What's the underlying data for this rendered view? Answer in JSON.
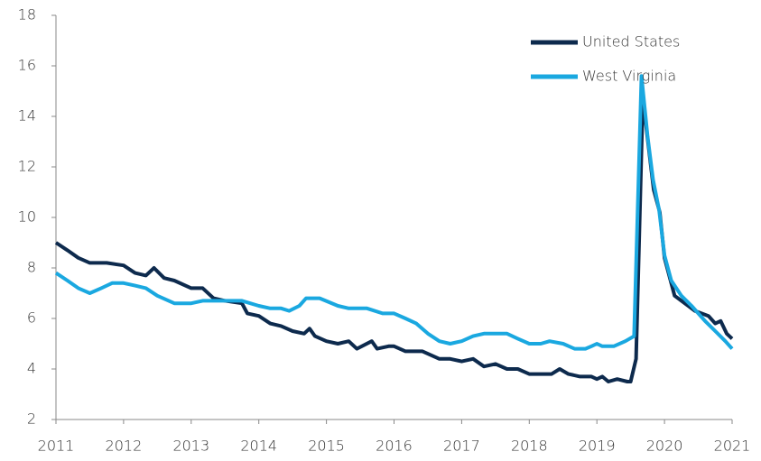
{
  "chart_data": {
    "type": "line",
    "xlim": [
      2011,
      2021
    ],
    "xticks": [
      2011,
      2012,
      2013,
      2014,
      2015,
      2016,
      2017,
      2018,
      2019,
      2020,
      2021
    ],
    "ylim": [
      2,
      18
    ],
    "yticks": [
      2,
      4,
      6,
      8,
      10,
      12,
      14,
      16,
      18
    ],
    "legend": "upper right",
    "grid": false,
    "series": [
      {
        "name": "United States",
        "color": "#0d2a4d",
        "x": [
          2011.0,
          2011.17,
          2011.33,
          2011.5,
          2011.75,
          2012.0,
          2012.17,
          2012.33,
          2012.45,
          2012.6,
          2012.75,
          2013.0,
          2013.17,
          2013.33,
          2013.5,
          2013.75,
          2013.83,
          2014.0,
          2014.17,
          2014.33,
          2014.5,
          2014.67,
          2014.75,
          2014.83,
          2015.0,
          2015.17,
          2015.33,
          2015.45,
          2015.67,
          2015.75,
          2015.92,
          2016.0,
          2016.17,
          2016.42,
          2016.67,
          2016.83,
          2017.0,
          2017.17,
          2017.33,
          2017.5,
          2017.67,
          2017.83,
          2018.0,
          2018.17,
          2018.33,
          2018.45,
          2018.58,
          2018.75,
          2018.92,
          2019.0,
          2019.08,
          2019.17,
          2019.3,
          2019.45,
          2019.5,
          2019.58,
          2019.68,
          2019.84,
          2019.93,
          2020.0,
          2020.15,
          2020.25,
          2020.45,
          2020.65,
          2020.75,
          2020.83,
          2020.92,
          2021.0
        ],
        "values": [
          9.0,
          8.7,
          8.4,
          8.2,
          8.2,
          8.1,
          7.8,
          7.7,
          8.0,
          7.6,
          7.5,
          7.2,
          7.2,
          6.8,
          6.7,
          6.6,
          6.2,
          6.1,
          5.8,
          5.7,
          5.5,
          5.4,
          5.6,
          5.3,
          5.1,
          5.0,
          5.1,
          4.8,
          5.1,
          4.8,
          4.9,
          4.9,
          4.7,
          4.7,
          4.4,
          4.4,
          4.3,
          4.4,
          4.1,
          4.2,
          4.0,
          4.0,
          3.8,
          3.8,
          3.8,
          4.0,
          3.8,
          3.7,
          3.7,
          3.6,
          3.7,
          3.5,
          3.6,
          3.5,
          3.5,
          4.4,
          14.7,
          11.1,
          10.2,
          8.4,
          6.9,
          6.7,
          6.3,
          6.1,
          5.8,
          5.9,
          5.4,
          5.2
        ]
      },
      {
        "name": "West Virginia",
        "color": "#1aa8e0",
        "x": [
          2011.0,
          2011.17,
          2011.33,
          2011.5,
          2011.67,
          2011.83,
          2012.0,
          2012.17,
          2012.33,
          2012.5,
          2012.75,
          2013.0,
          2013.17,
          2013.5,
          2013.75,
          2014.0,
          2014.17,
          2014.33,
          2014.45,
          2014.6,
          2014.7,
          2014.9,
          2015.17,
          2015.33,
          2015.6,
          2015.83,
          2016.0,
          2016.17,
          2016.33,
          2016.5,
          2016.67,
          2016.83,
          2017.0,
          2017.17,
          2017.33,
          2017.67,
          2017.83,
          2018.0,
          2018.17,
          2018.3,
          2018.5,
          2018.67,
          2018.83,
          2018.92,
          2019.0,
          2019.08,
          2019.25,
          2019.42,
          2019.55,
          2019.66,
          2019.75,
          2019.83,
          2019.92,
          2020.0,
          2020.1,
          2020.25,
          2020.4,
          2020.6,
          2020.75,
          2020.9,
          2021.0
        ],
        "values": [
          7.8,
          7.5,
          7.2,
          7.0,
          7.2,
          7.4,
          7.4,
          7.3,
          7.2,
          6.9,
          6.6,
          6.6,
          6.7,
          6.7,
          6.7,
          6.5,
          6.4,
          6.4,
          6.3,
          6.5,
          6.8,
          6.8,
          6.5,
          6.4,
          6.4,
          6.2,
          6.2,
          6.0,
          5.8,
          5.4,
          5.1,
          5.0,
          5.1,
          5.3,
          5.4,
          5.4,
          5.2,
          5.0,
          5.0,
          5.1,
          5.0,
          4.8,
          4.8,
          4.9,
          5.0,
          4.9,
          4.9,
          5.1,
          5.3,
          15.6,
          13.2,
          11.5,
          10.3,
          8.5,
          7.5,
          6.9,
          6.5,
          5.9,
          5.5,
          5.1,
          4.8
        ]
      }
    ]
  }
}
